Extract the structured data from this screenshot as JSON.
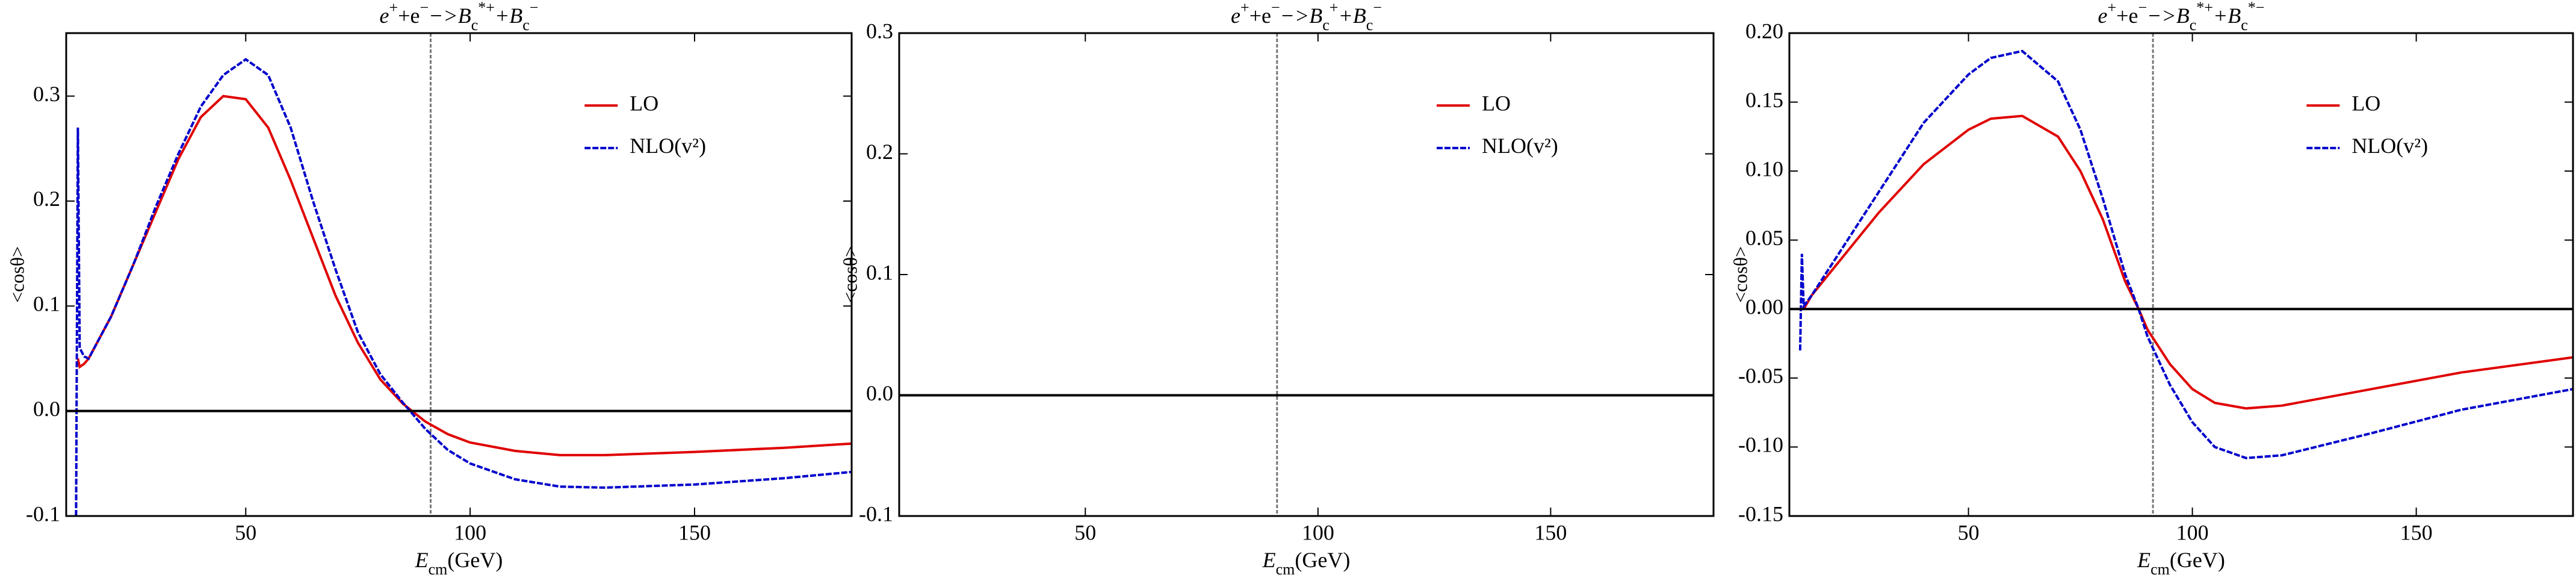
{
  "chart_data": [
    {
      "type": "line",
      "title": [
        [
          "e",
          ""
        ],
        [
          "+",
          "sup"
        ],
        [
          "+e",
          ""
        ],
        [
          "−",
          "sup"
        ],
        [
          "−>B",
          ""
        ],
        [
          "c",
          "sub"
        ],
        [
          "*+",
          "sup"
        ],
        [
          "+B",
          ""
        ],
        [
          "c",
          "sub"
        ],
        [
          "−",
          "sup"
        ]
      ],
      "x_label": [
        [
          "E",
          ""
        ],
        [
          "cm",
          "sub"
        ],
        [
          "(GeV)",
          ""
        ]
      ],
      "y_label": "<cosθ>",
      "xlim": [
        10,
        185
      ],
      "xticks": [
        50,
        100,
        150
      ],
      "ylim": [
        -0.1,
        0.36
      ],
      "yticks": [
        -0.1,
        {
          "value": 0,
          "label": "0.0"
        },
        0.1,
        0.2,
        0.3
      ],
      "vline": 91.2,
      "hline": 0,
      "legend": "upper right",
      "x": [
        12.2,
        12.6,
        13,
        14,
        15,
        20,
        25,
        30,
        35,
        40,
        45,
        50,
        55,
        60,
        65,
        70,
        75,
        80,
        85,
        90,
        95,
        100,
        110,
        120,
        130,
        150,
        170,
        185
      ],
      "series": [
        {
          "name": "LO",
          "color": "#e00000",
          "dashed": false,
          "values": [
            null,
            0.05,
            0.042,
            0.045,
            0.05,
            0.09,
            0.14,
            0.19,
            0.24,
            0.28,
            0.3,
            0.297,
            0.27,
            0.22,
            0.165,
            0.11,
            0.065,
            0.03,
            0.007,
            -0.01,
            -0.022,
            -0.03,
            -0.038,
            -0.042,
            -0.042,
            -0.039,
            -0.035,
            -0.031
          ]
        },
        {
          "name": "NLO(v²)",
          "color": "#0000cc",
          "dashed": true,
          "values": [
            -0.1,
            0.27,
            0.06,
            0.052,
            0.05,
            0.09,
            0.14,
            0.195,
            0.245,
            0.29,
            0.32,
            0.335,
            0.32,
            0.27,
            0.2,
            0.135,
            0.075,
            0.035,
            0.008,
            -0.017,
            -0.037,
            -0.05,
            -0.065,
            -0.072,
            -0.073,
            -0.07,
            -0.064,
            -0.058
          ]
        }
      ]
    },
    {
      "type": "line",
      "title": [
        [
          "e",
          ""
        ],
        [
          "+",
          "sup"
        ],
        [
          "+e",
          ""
        ],
        [
          "−",
          "sup"
        ],
        [
          "−>B",
          ""
        ],
        [
          "c",
          "sub"
        ],
        [
          "+",
          "sup"
        ],
        [
          "+B",
          ""
        ],
        [
          "c",
          "sub"
        ],
        [
          "−",
          "sup"
        ]
      ],
      "x_label": [
        [
          "E",
          ""
        ],
        [
          "cm",
          "sub"
        ],
        [
          "(GeV)",
          ""
        ]
      ],
      "y_label": "<cosθ>",
      "xlim": [
        10,
        185
      ],
      "xticks": [
        50,
        100,
        150
      ],
      "ylim": [
        -0.1,
        0.3
      ],
      "yticks": [
        -0.1,
        {
          "value": 0,
          "label": "0.0"
        },
        0.1,
        0.2,
        0.3
      ],
      "vline": 91.2,
      "hline": 0,
      "legend": "upper right",
      "x": [
        12.6,
        185
      ],
      "series": [
        {
          "name": "LO",
          "color": "#e00000",
          "dashed": false,
          "values": [
            0,
            0
          ]
        },
        {
          "name": "NLO(v²)",
          "color": "#0000cc",
          "dashed": true,
          "values": [
            0,
            0
          ]
        }
      ]
    },
    {
      "type": "line",
      "title": [
        [
          "e",
          ""
        ],
        [
          "+",
          "sup"
        ],
        [
          "+e",
          ""
        ],
        [
          "−",
          "sup"
        ],
        [
          "−>B",
          ""
        ],
        [
          "c",
          "sub"
        ],
        [
          "*+",
          "sup"
        ],
        [
          "+B",
          ""
        ],
        [
          "c",
          "sub"
        ],
        [
          "*−",
          "sup"
        ]
      ],
      "x_label": [
        [
          "E",
          ""
        ],
        [
          "cm",
          "sub"
        ],
        [
          "(GeV)",
          ""
        ]
      ],
      "y_label": "<cosθ>",
      "xlim": [
        10,
        185
      ],
      "xticks": [
        50,
        100,
        150
      ],
      "ylim": [
        -0.15,
        0.2
      ],
      "yticks": [
        -0.15,
        {
          "value": -0.1,
          "label": "-0.10"
        },
        -0.05,
        {
          "value": 0,
          "label": "0.00"
        },
        0.05,
        {
          "value": 0.1,
          "label": "0.10"
        },
        0.15,
        {
          "value": 0.2,
          "label": "0.20"
        }
      ],
      "vline": 91.2,
      "hline": 0,
      "legend": "upper right",
      "x": [
        12.4,
        12.8,
        13.2,
        15,
        20,
        30,
        40,
        50,
        55,
        62,
        70,
        75,
        80,
        85,
        88,
        90,
        95,
        100,
        105,
        112,
        120,
        140,
        160,
        185
      ],
      "series": [
        {
          "name": "LO",
          "color": "#e00000",
          "dashed": false,
          "values": [
            null,
            null,
            0.0,
            0.01,
            0.03,
            0.07,
            0.105,
            0.13,
            0.138,
            0.14,
            0.125,
            0.1,
            0.065,
            0.02,
            0.0,
            -0.015,
            -0.04,
            -0.058,
            -0.068,
            -0.072,
            -0.07,
            -0.058,
            -0.046,
            -0.035
          ]
        },
        {
          "name": "NLO(v²)",
          "color": "#0000cc",
          "dashed": true,
          "values": [
            -0.03,
            0.04,
            0.002,
            0.01,
            0.035,
            0.085,
            0.135,
            0.17,
            0.182,
            0.187,
            0.165,
            0.13,
            0.08,
            0.025,
            0.0,
            -0.02,
            -0.055,
            -0.082,
            -0.1,
            -0.108,
            -0.106,
            -0.09,
            -0.073,
            -0.058
          ]
        }
      ]
    }
  ]
}
